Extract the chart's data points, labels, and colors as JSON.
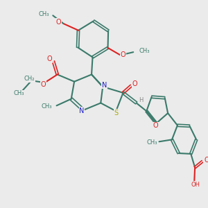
{
  "background_color": "#ebebeb",
  "bond_color": "#3a7a6a",
  "n_color": "#1a1acc",
  "s_color": "#aaaa00",
  "o_color": "#dd2222",
  "h_color": "#888888",
  "text_color": "#3a7a6a",
  "figsize": [
    3.0,
    3.0
  ],
  "dpi": 100,
  "xlim": [
    0,
    10
  ],
  "ylim": [
    0,
    10
  ]
}
